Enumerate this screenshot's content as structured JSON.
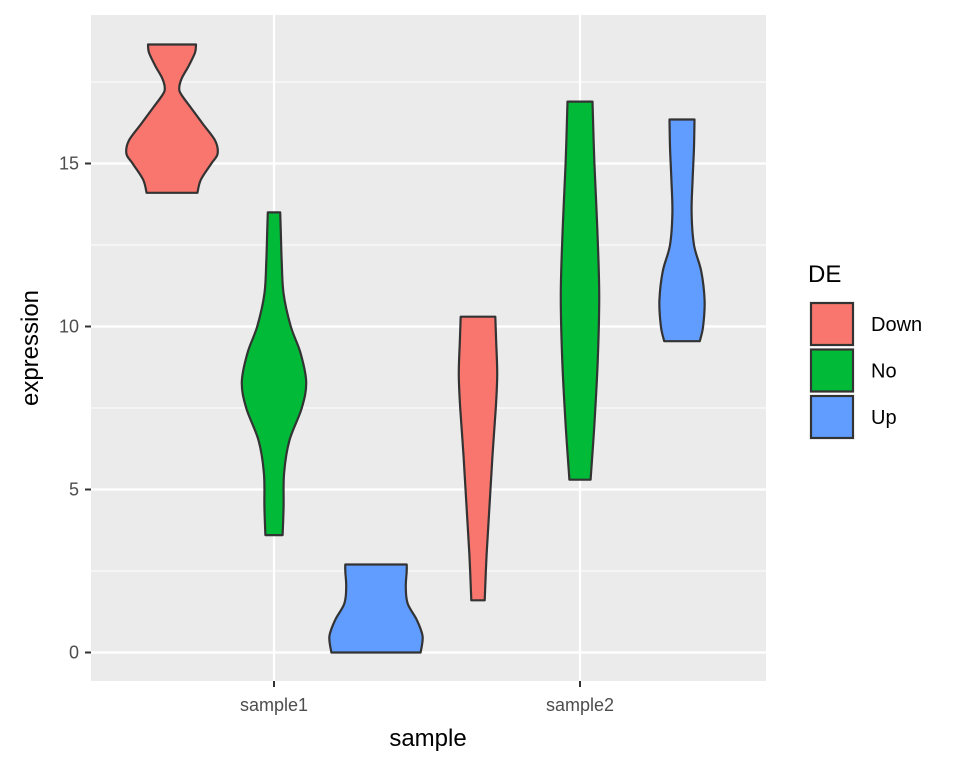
{
  "chart_data": {
    "type": "violin",
    "xlabel": "sample",
    "ylabel": "expression",
    "categories": [
      "sample1",
      "sample2"
    ],
    "ylim": [
      -0.9,
      19.1
    ],
    "yticks": [
      0,
      5,
      10,
      15
    ],
    "grid": true,
    "legend": {
      "title": "DE",
      "position": "right",
      "entries": [
        {
          "name": "Down",
          "color": "#F8766D"
        },
        {
          "name": "No",
          "color": "#00BA38"
        },
        {
          "name": "Up",
          "color": "#619CFF"
        }
      ]
    },
    "series": [
      {
        "name": "Down",
        "color": "#F8766D",
        "violins": [
          {
            "category": "sample1",
            "profile": [
              [
                14.1,
                0.53
              ],
              [
                14.5,
                0.6
              ],
              [
                15.0,
                0.82
              ],
              [
                15.3,
                0.95
              ],
              [
                15.7,
                0.9
              ],
              [
                16.2,
                0.65
              ],
              [
                16.7,
                0.4
              ],
              [
                17.1,
                0.2
              ],
              [
                17.3,
                0.15
              ],
              [
                17.6,
                0.2
              ],
              [
                18.0,
                0.35
              ],
              [
                18.4,
                0.48
              ],
              [
                18.65,
                0.5
              ]
            ]
          },
          {
            "category": "sample2",
            "profile": [
              [
                1.6,
                0.14
              ],
              [
                3.0,
                0.18
              ],
              [
                4.5,
                0.24
              ],
              [
                6.0,
                0.3
              ],
              [
                7.5,
                0.37
              ],
              [
                8.5,
                0.4
              ],
              [
                9.5,
                0.38
              ],
              [
                10.3,
                0.36
              ]
            ]
          }
        ]
      },
      {
        "name": "No",
        "color": "#00BA38",
        "violins": [
          {
            "category": "sample1",
            "profile": [
              [
                3.6,
                0.18
              ],
              [
                4.5,
                0.2
              ],
              [
                5.5,
                0.21
              ],
              [
                6.5,
                0.32
              ],
              [
                7.5,
                0.58
              ],
              [
                8.3,
                0.67
              ],
              [
                9.2,
                0.55
              ],
              [
                10.0,
                0.35
              ],
              [
                11.0,
                0.2
              ],
              [
                12.0,
                0.16
              ],
              [
                13.0,
                0.14
              ],
              [
                13.5,
                0.13
              ]
            ]
          },
          {
            "category": "sample2",
            "profile": [
              [
                5.3,
                0.22
              ],
              [
                7.0,
                0.3
              ],
              [
                9.0,
                0.37
              ],
              [
                11.0,
                0.4
              ],
              [
                13.0,
                0.36
              ],
              [
                15.0,
                0.3
              ],
              [
                16.9,
                0.26
              ]
            ]
          }
        ]
      },
      {
        "name": "Up",
        "color": "#619CFF",
        "violins": [
          {
            "category": "sample1",
            "profile": [
              [
                0.0,
                0.93
              ],
              [
                0.5,
                0.97
              ],
              [
                1.0,
                0.85
              ],
              [
                1.5,
                0.66
              ],
              [
                2.0,
                0.62
              ],
              [
                2.5,
                0.64
              ],
              [
                2.7,
                0.64
              ]
            ]
          },
          {
            "category": "sample2",
            "profile": [
              [
                9.55,
                0.37
              ],
              [
                10.0,
                0.44
              ],
              [
                10.8,
                0.47
              ],
              [
                11.7,
                0.4
              ],
              [
                12.5,
                0.25
              ],
              [
                13.5,
                0.2
              ],
              [
                14.5,
                0.22
              ],
              [
                15.5,
                0.25
              ],
              [
                16.35,
                0.26
              ]
            ]
          }
        ]
      }
    ]
  }
}
